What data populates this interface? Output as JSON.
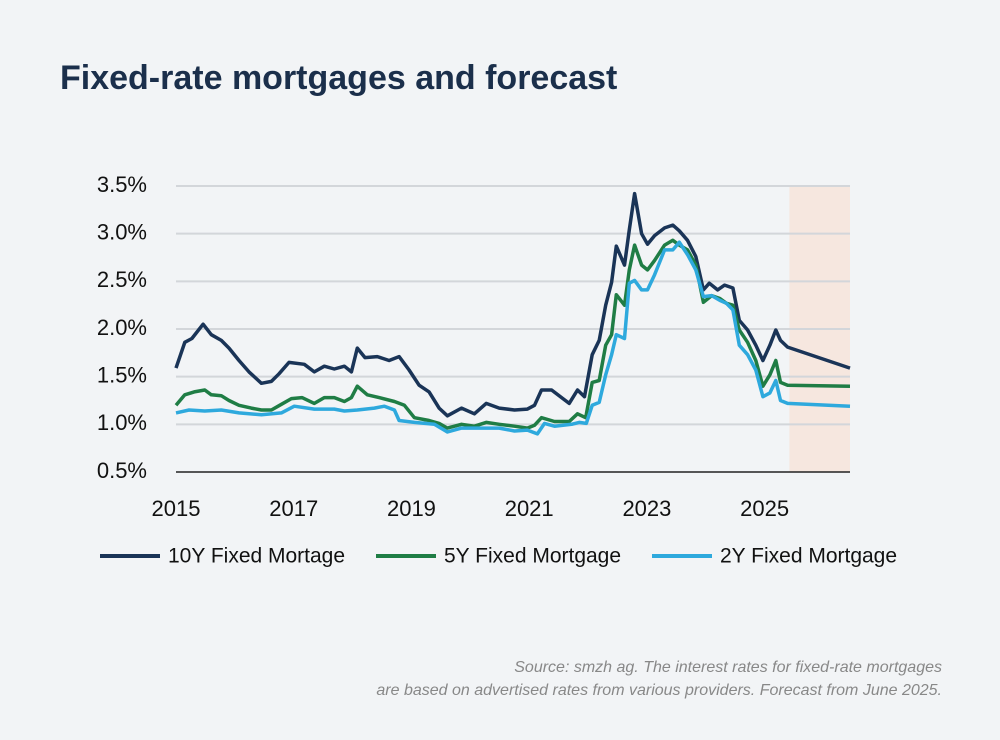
{
  "chart_data": {
    "type": "line",
    "title": "Fixed-rate mortgages and forecast",
    "xlim": [
      2015,
      2026.45
    ],
    "xticks": [
      2015,
      2017,
      2019,
      2021,
      2023,
      2025
    ],
    "ylim": [
      0.5,
      3.5
    ],
    "yticks": [
      {
        "value": 0.5,
        "label": "0.5%"
      },
      {
        "value": 1.0,
        "label": "1.0%"
      },
      {
        "value": 1.5,
        "label": "1.5%"
      },
      {
        "value": 2.0,
        "label": "2.0%"
      },
      {
        "value": 2.5,
        "label": "2.5%"
      },
      {
        "value": 3.0,
        "label": "3.0%"
      },
      {
        "value": 3.5,
        "label": "3.5%"
      }
    ],
    "grid": true,
    "legend": "bottom",
    "shaded_region": {
      "x": [
        2025.42,
        2026.45
      ],
      "color": "#f6e7df"
    },
    "series": [
      {
        "name": "10Y Fixed Mortage",
        "color": "#1a3457",
        "x": [
          2015,
          2015.15,
          2015.27,
          2015.46,
          2015.6,
          2015.77,
          2015.9,
          2016.07,
          2016.24,
          2016.45,
          2016.62,
          2016.75,
          2016.92,
          2017.18,
          2017.35,
          2017.52,
          2017.69,
          2017.86,
          2017.98,
          2018.08,
          2018.21,
          2018.42,
          2018.62,
          2018.79,
          2018.96,
          2019.13,
          2019.3,
          2019.47,
          2019.61,
          2019.85,
          2020.07,
          2020.27,
          2020.49,
          2020.75,
          2020.97,
          2021.09,
          2021.21,
          2021.38,
          2021.55,
          2021.68,
          2021.82,
          2021.94,
          2022.07,
          2022.19,
          2022.3,
          2022.4,
          2022.48,
          2022.62,
          2022.7,
          2022.79,
          2022.91,
          2023.01,
          2023.13,
          2023.3,
          2023.44,
          2023.55,
          2023.69,
          2023.83,
          2023.96,
          2024.06,
          2024.2,
          2024.32,
          2024.46,
          2024.57,
          2024.71,
          2024.85,
          2024.97,
          2025.09,
          2025.19,
          2025.27,
          2025.39,
          2026.45
        ],
        "values": [
          1.59,
          1.86,
          1.9,
          2.05,
          1.94,
          1.88,
          1.8,
          1.67,
          1.55,
          1.43,
          1.45,
          1.53,
          1.65,
          1.63,
          1.55,
          1.61,
          1.58,
          1.61,
          1.55,
          1.8,
          1.7,
          1.71,
          1.67,
          1.71,
          1.57,
          1.41,
          1.34,
          1.17,
          1.09,
          1.17,
          1.11,
          1.22,
          1.17,
          1.15,
          1.16,
          1.2,
          1.36,
          1.36,
          1.28,
          1.22,
          1.36,
          1.29,
          1.73,
          1.88,
          2.25,
          2.49,
          2.87,
          2.67,
          3.04,
          3.42,
          3.0,
          2.89,
          2.98,
          3.06,
          3.09,
          3.03,
          2.93,
          2.76,
          2.41,
          2.48,
          2.41,
          2.46,
          2.43,
          2.09,
          1.99,
          1.83,
          1.67,
          1.83,
          1.99,
          1.88,
          1.81,
          1.59
        ]
      },
      {
        "name": "5Y Fixed Mortgage",
        "color": "#1f7d45",
        "x": [
          2015,
          2015.15,
          2015.31,
          2015.49,
          2015.6,
          2015.77,
          2015.9,
          2016.07,
          2016.28,
          2016.45,
          2016.62,
          2016.79,
          2016.96,
          2017.14,
          2017.35,
          2017.52,
          2017.69,
          2017.86,
          2017.98,
          2018.08,
          2018.25,
          2018.45,
          2018.71,
          2018.88,
          2019.05,
          2019.3,
          2019.47,
          2019.61,
          2019.85,
          2020.07,
          2020.27,
          2020.49,
          2020.75,
          2020.97,
          2021.09,
          2021.21,
          2021.43,
          2021.68,
          2021.82,
          2021.96,
          2022.07,
          2022.19,
          2022.3,
          2022.4,
          2022.48,
          2022.62,
          2022.7,
          2022.79,
          2022.91,
          2023.01,
          2023.13,
          2023.3,
          2023.44,
          2023.55,
          2023.69,
          2023.83,
          2023.96,
          2024.1,
          2024.24,
          2024.35,
          2024.46,
          2024.57,
          2024.71,
          2024.85,
          2024.97,
          2025.09,
          2025.19,
          2025.27,
          2025.39,
          2026.45
        ],
        "values": [
          1.2,
          1.31,
          1.34,
          1.36,
          1.31,
          1.3,
          1.25,
          1.2,
          1.17,
          1.15,
          1.15,
          1.21,
          1.27,
          1.28,
          1.22,
          1.28,
          1.28,
          1.24,
          1.28,
          1.4,
          1.31,
          1.28,
          1.24,
          1.2,
          1.07,
          1.04,
          1.01,
          0.96,
          1.0,
          0.98,
          1.02,
          1.0,
          0.98,
          0.96,
          0.99,
          1.07,
          1.03,
          1.03,
          1.11,
          1.07,
          1.44,
          1.46,
          1.83,
          1.94,
          2.36,
          2.25,
          2.62,
          2.88,
          2.67,
          2.62,
          2.72,
          2.88,
          2.93,
          2.88,
          2.83,
          2.67,
          2.28,
          2.35,
          2.32,
          2.27,
          2.25,
          1.99,
          1.86,
          1.67,
          1.4,
          1.52,
          1.67,
          1.44,
          1.41,
          1.4
        ]
      },
      {
        "name": "2Y Fixed Mortgage",
        "color": "#2ea9dd",
        "x": [
          2015,
          2015.22,
          2015.49,
          2015.77,
          2016.07,
          2016.45,
          2016.79,
          2017.01,
          2017.35,
          2017.69,
          2017.86,
          2018.08,
          2018.37,
          2018.54,
          2018.71,
          2018.79,
          2019.05,
          2019.39,
          2019.61,
          2019.85,
          2020.27,
          2020.49,
          2020.75,
          2020.97,
          2021.14,
          2021.26,
          2021.43,
          2021.72,
          2021.85,
          2021.97,
          2022.07,
          2022.19,
          2022.3,
          2022.4,
          2022.48,
          2022.62,
          2022.7,
          2022.79,
          2022.91,
          2023.01,
          2023.13,
          2023.3,
          2023.44,
          2023.55,
          2023.69,
          2023.83,
          2023.96,
          2024.1,
          2024.24,
          2024.35,
          2024.46,
          2024.57,
          2024.71,
          2024.85,
          2024.97,
          2025.09,
          2025.19,
          2025.27,
          2025.39,
          2026.45
        ],
        "values": [
          1.12,
          1.15,
          1.14,
          1.15,
          1.12,
          1.1,
          1.12,
          1.19,
          1.16,
          1.16,
          1.14,
          1.15,
          1.17,
          1.19,
          1.15,
          1.04,
          1.02,
          1.0,
          0.92,
          0.96,
          0.96,
          0.96,
          0.93,
          0.94,
          0.9,
          1.01,
          0.98,
          1.0,
          1.02,
          1.01,
          1.2,
          1.23,
          1.52,
          1.73,
          1.94,
          1.9,
          2.48,
          2.51,
          2.41,
          2.41,
          2.57,
          2.83,
          2.83,
          2.91,
          2.78,
          2.62,
          2.34,
          2.35,
          2.3,
          2.27,
          2.2,
          1.83,
          1.73,
          1.57,
          1.29,
          1.33,
          1.46,
          1.25,
          1.22,
          1.19
        ]
      }
    ],
    "source": [
      "Source: smzh ag. The interest rates for fixed-rate mortgages",
      "are based on advertised rates from various providers. Forecast from June 2025."
    ]
  }
}
